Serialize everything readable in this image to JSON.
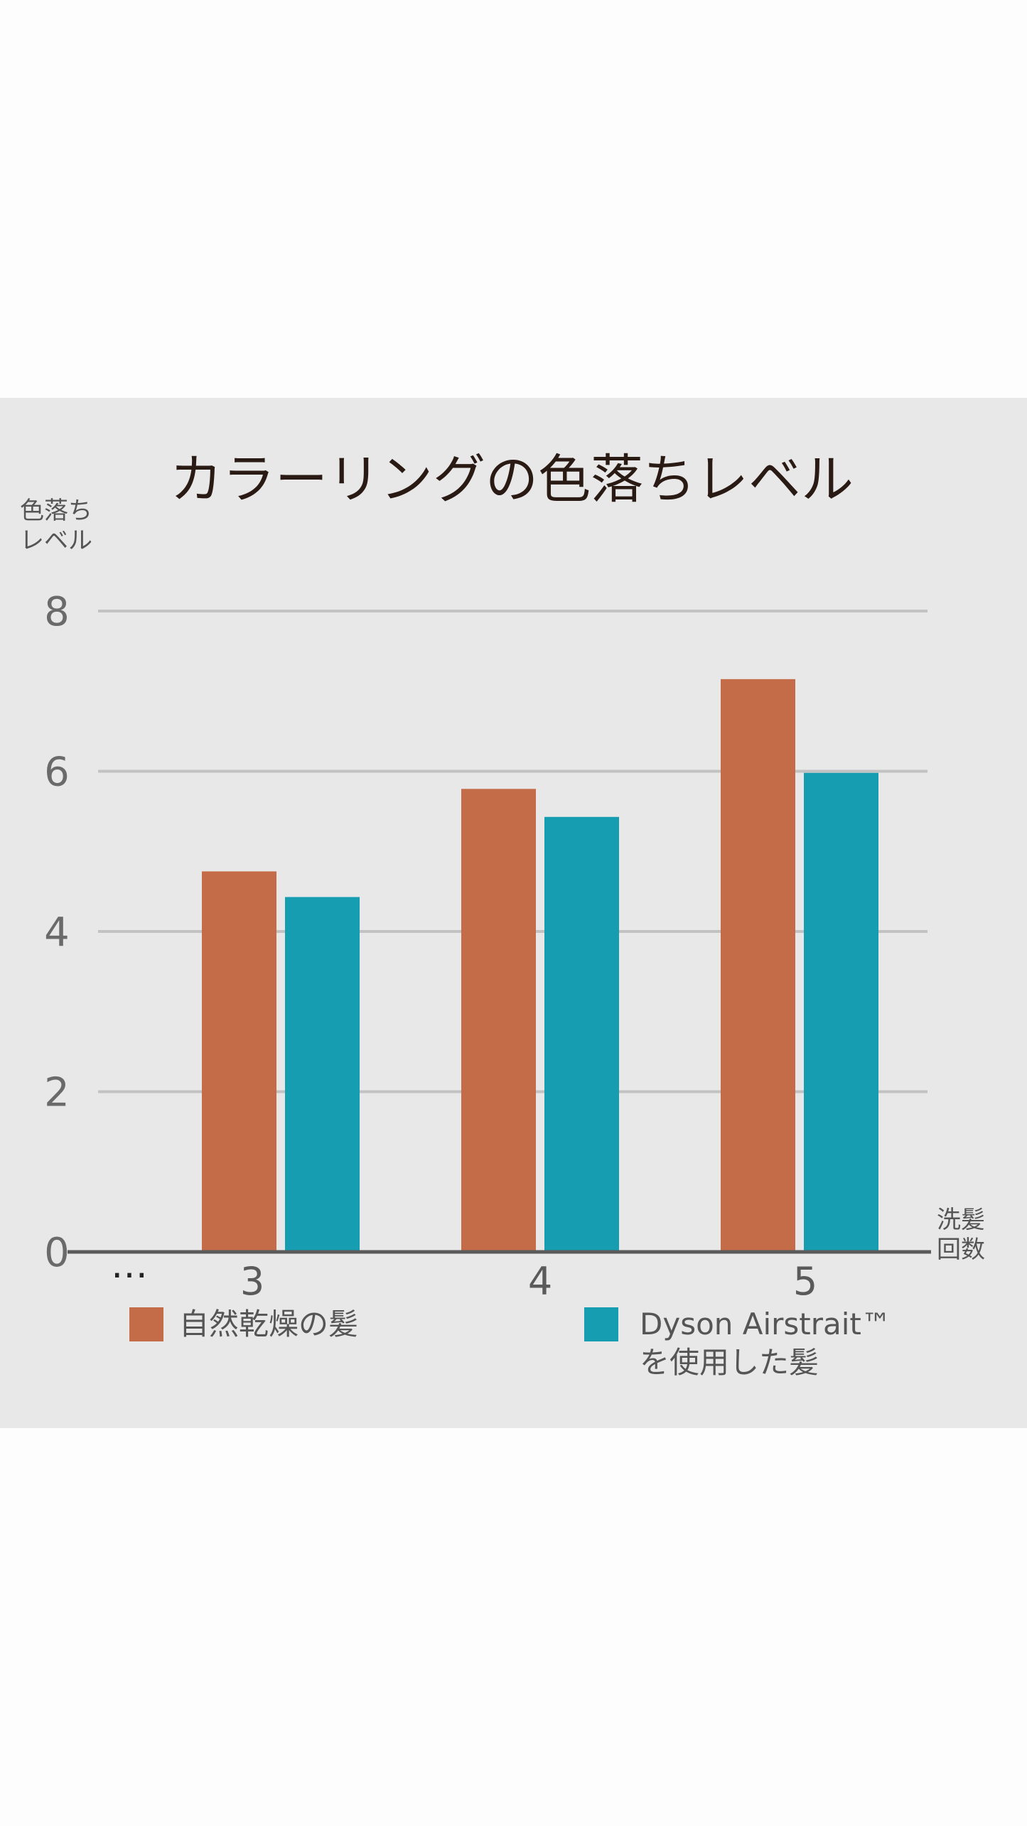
{
  "chart_data": {
    "type": "bar",
    "title": "カラーリングの色落ちレベル",
    "ylabel_lines": [
      "色落ち",
      "レベル"
    ],
    "xlabel_lines": [
      "洗髪",
      "回数"
    ],
    "ylim": [
      0,
      8
    ],
    "yticks": [
      "0",
      "2",
      "4",
      "6",
      "8"
    ],
    "grid": true,
    "ellipsis": "…",
    "categories": [
      "3",
      "4",
      "5"
    ],
    "series": [
      {
        "name": "自然乾燥の髪",
        "color": "#c46c48",
        "values": [
          4.75,
          5.78,
          7.15
        ]
      },
      {
        "name_lines": [
          "Dyson Airstrait™",
          "を使用した髪"
        ],
        "color": "#169db2",
        "values": [
          4.43,
          5.43,
          5.98
        ]
      }
    ],
    "legend_position": "bottom"
  }
}
